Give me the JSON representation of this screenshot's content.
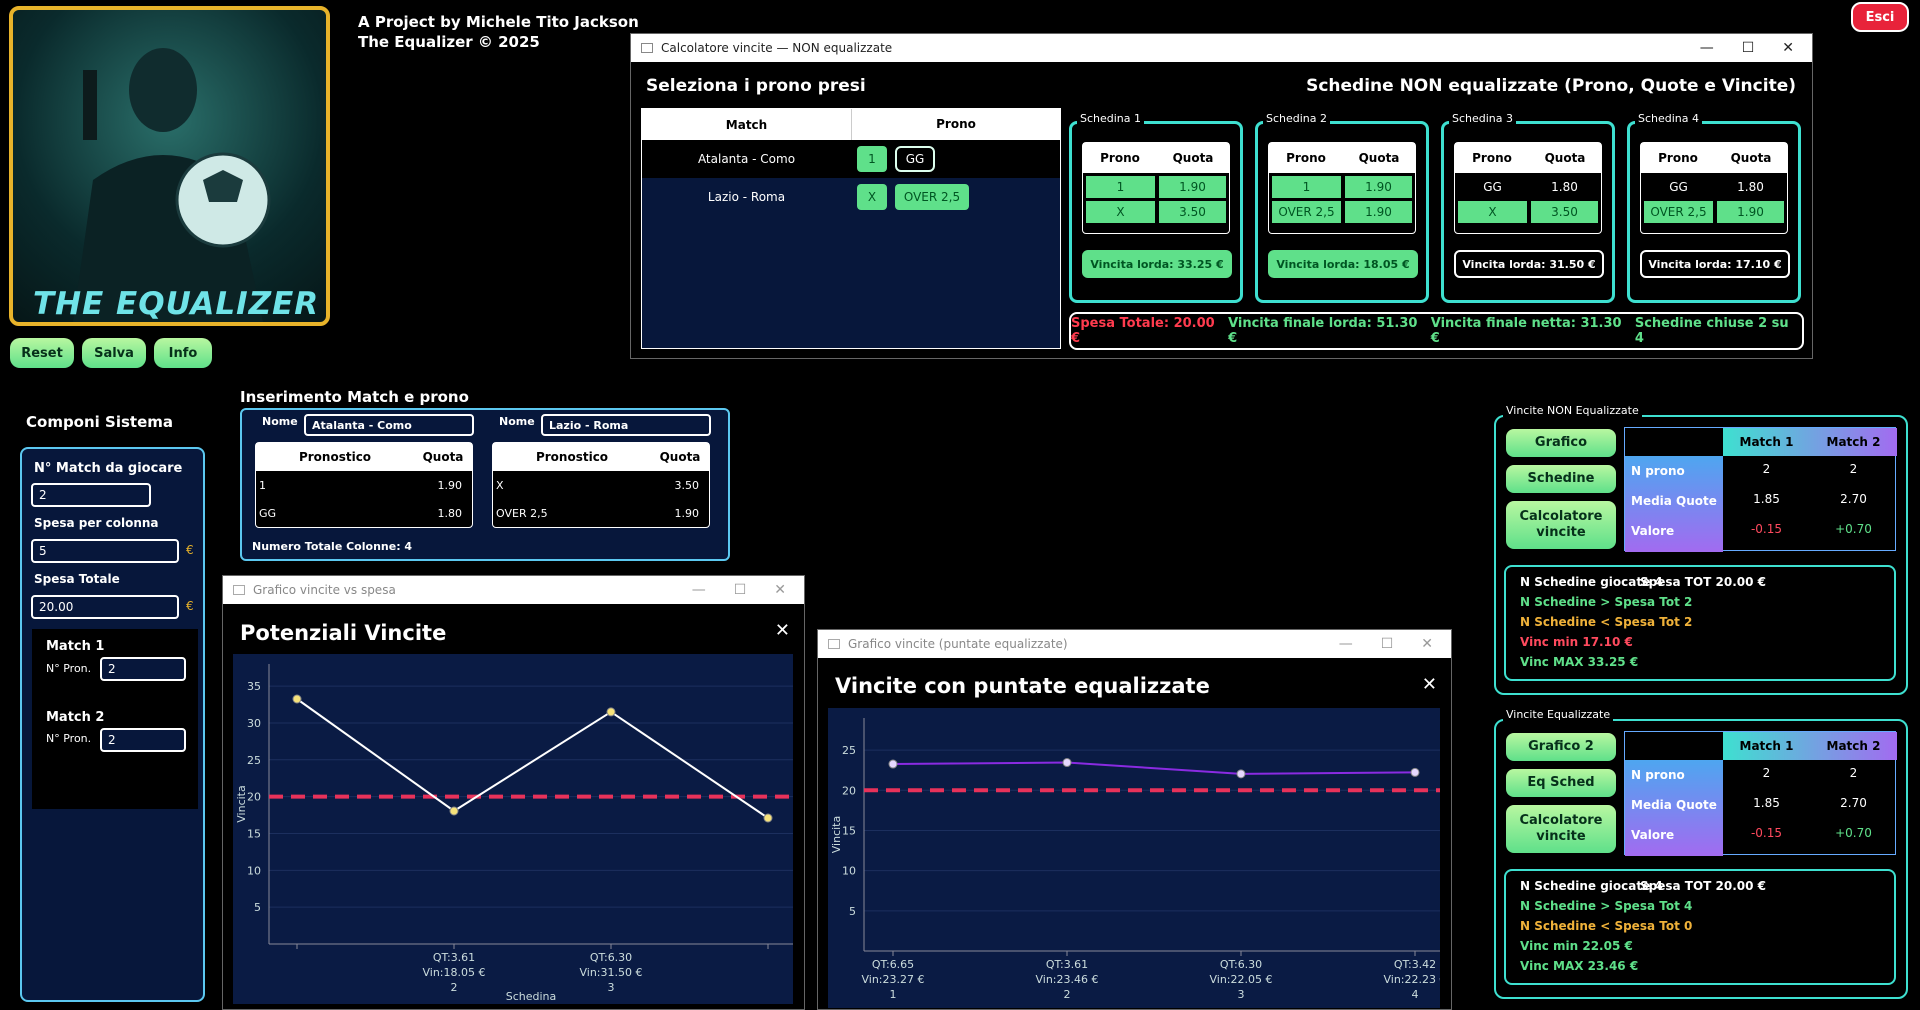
{
  "header": {
    "line1": "A Project by Michele Tito Jackson",
    "line2": "The Equalizer © 2025",
    "exit": "Esci",
    "logo_text": "THE EQUALIZER"
  },
  "left_buttons": {
    "reset": "Reset",
    "save": "Salva",
    "info": "Info"
  },
  "calc": {
    "window_title": "Calcolatore vincite — NON equalizzate",
    "left_title": "Seleziona i prono presi",
    "right_title": "Schedine NON equalizzate (Prono, Quote e Vincite)",
    "col_match": "Match",
    "col_prono": "Prono",
    "rows": [
      {
        "match": "Atalanta - Como",
        "p1": "1",
        "p2": "GG"
      },
      {
        "match": "Lazio - Roma",
        "p1": "X",
        "p2": "OVER 2,5"
      }
    ],
    "schedine": [
      {
        "title": "Schedina 1",
        "h1": "Prono",
        "h2": "Quota",
        "r": [
          [
            "1",
            "1.90"
          ],
          [
            "X",
            "3.50"
          ]
        ],
        "win": "Vincita lorda: 33.25 €"
      },
      {
        "title": "Schedina 2",
        "h1": "Prono",
        "h2": "Quota",
        "r": [
          [
            "1",
            "1.90"
          ],
          [
            "OVER 2,5",
            "1.90"
          ]
        ],
        "win": "Vincita lorda: 18.05 €"
      },
      {
        "title": "Schedina 3",
        "h1": "Prono",
        "h2": "Quota",
        "r": [
          [
            "GG",
            "1.80"
          ],
          [
            "X",
            "3.50"
          ]
        ],
        "win": "Vincita lorda: 31.50 €"
      },
      {
        "title": "Schedina 4",
        "h1": "Prono",
        "h2": "Quota",
        "r": [
          [
            "GG",
            "1.80"
          ],
          [
            "OVER 2,5",
            "1.90"
          ]
        ],
        "win": "Vincita lorda: 17.10 €"
      }
    ],
    "summary": {
      "spesa": "Spesa Totale: 20.00 €",
      "finale_lorda": "Vincita finale lorda: 51.30 €",
      "finale_netta": "Vincita finale netta: 31.30 €",
      "chiuse": "Schedine chiuse 2 su 4"
    }
  },
  "componi": {
    "title": "Componi Sistema",
    "n_match_label": "N° Match da giocare",
    "n_match": "2",
    "spesa_col_label": "Spesa per colonna",
    "spesa_col": "5",
    "spesa_tot_label": "Spesa Totale",
    "spesa_tot": "20.00",
    "euro": "€",
    "matches": [
      {
        "title": "Match 1",
        "label": "N° Pron.",
        "value": "2"
      },
      {
        "title": "Match 2",
        "label": "N° Pron.",
        "value": "2"
      }
    ]
  },
  "inserimento": {
    "title": "Inserimento Match e prono",
    "name_label": "Nome",
    "col_pron": "Pronostico",
    "col_quota": "Quota",
    "total": "Numero Totale Colonne: 4",
    "matches": [
      {
        "name": "Atalanta - Como",
        "rows": [
          [
            "1",
            "1.90"
          ],
          [
            "GG",
            "1.80"
          ]
        ]
      },
      {
        "name": "Lazio - Roma",
        "rows": [
          [
            "X",
            "3.50"
          ],
          [
            "OVER 2,5",
            "1.90"
          ]
        ]
      }
    ]
  },
  "chart1": {
    "window_title": "Grafico vincite vs spesa",
    "title": "Potenziali Vincite",
    "close": "✕"
  },
  "chart2": {
    "window_title": "Grafico vincite (puntate equalizzate)",
    "title": "Vincite con puntate equalizzate",
    "close": "✕"
  },
  "chart_data": [
    {
      "type": "line",
      "title": "Potenziali Vincite",
      "ylabel": "Vincita",
      "xlabel": "Schedina",
      "ylim": [
        0,
        38
      ],
      "threshold": 20,
      "x": [
        "1",
        "2",
        "3",
        "4"
      ],
      "values": [
        33.25,
        18.05,
        31.5,
        17.1
      ],
      "tick_labels": [
        [
          "QT:3.61",
          "Vin:18.05 €",
          "2"
        ],
        [
          "QT:6.30",
          "Vin:31.50 €",
          "3"
        ]
      ],
      "tick_index": [
        1,
        2
      ],
      "yticks": [
        5,
        10,
        15,
        20,
        25,
        30,
        35
      ],
      "line_color": "#ffffff",
      "point_color": "#f6e27a",
      "threshold_color": "#e8325a"
    },
    {
      "type": "line",
      "title": "Vincite con puntate equalizzate",
      "ylabel": "Vincita",
      "ylim": [
        0,
        29
      ],
      "threshold": 20,
      "x": [
        "1",
        "2",
        "3",
        "4"
      ],
      "values": [
        23.27,
        23.46,
        22.05,
        22.23
      ],
      "tick_labels": [
        [
          "QT:6.65",
          "Vin:23.27 €",
          "1"
        ],
        [
          "QT:3.61",
          "Vin:23.46 €",
          "2"
        ],
        [
          "QT:6.30",
          "Vin:22.05 €",
          "3"
        ],
        [
          "QT:3.42",
          "Vin:22.23 €",
          "4"
        ]
      ],
      "tick_index": [
        0,
        1,
        2,
        3
      ],
      "yticks": [
        5,
        10,
        15,
        20,
        25
      ],
      "line_color": "#8a2be2",
      "point_color": "#e6d8ff",
      "threshold_color": "#e8325a"
    }
  ],
  "non_eq": {
    "group_title": "Vincite NON Equalizzate",
    "btns": [
      "Grafico",
      "Schedine",
      "Calcolatore vincite"
    ],
    "cols": [
      "Match 1",
      "Match 2"
    ],
    "rows": [
      {
        "label": "N prono",
        "v": [
          "2",
          "2"
        ]
      },
      {
        "label": "Media Quote",
        "v": [
          "1.85",
          "2.70"
        ]
      },
      {
        "label": "Valore",
        "v": [
          "-0.15",
          "+0.70"
        ]
      }
    ],
    "info": [
      "N Schedine giocate 4",
      "Spesa TOT 20.00 €",
      "N Schedine > Spesa Tot 2",
      "N Schedine < Spesa Tot 2",
      "Vinc min 17.10 €",
      "Vinc MAX 33.25 €"
    ]
  },
  "eq": {
    "group_title": "Vincite Equalizzate",
    "btns": [
      "Grafico 2",
      "Eq Sched",
      "Calcolatore vincite"
    ],
    "cols": [
      "Match 1",
      "Match 2"
    ],
    "rows": [
      {
        "label": "N prono",
        "v": [
          "2",
          "2"
        ]
      },
      {
        "label": "Media Quote",
        "v": [
          "1.85",
          "2.70"
        ]
      },
      {
        "label": "Valore",
        "v": [
          "-0.15",
          "+0.70"
        ]
      }
    ],
    "info": [
      "N Schedine giocate 4",
      "Spesa TOT 20.00 €",
      "N Schedine > Spesa Tot 4",
      "N Schedine < Spesa Tot 0",
      "Vinc min 22.05 €",
      "Vinc MAX 23.46 €"
    ]
  }
}
